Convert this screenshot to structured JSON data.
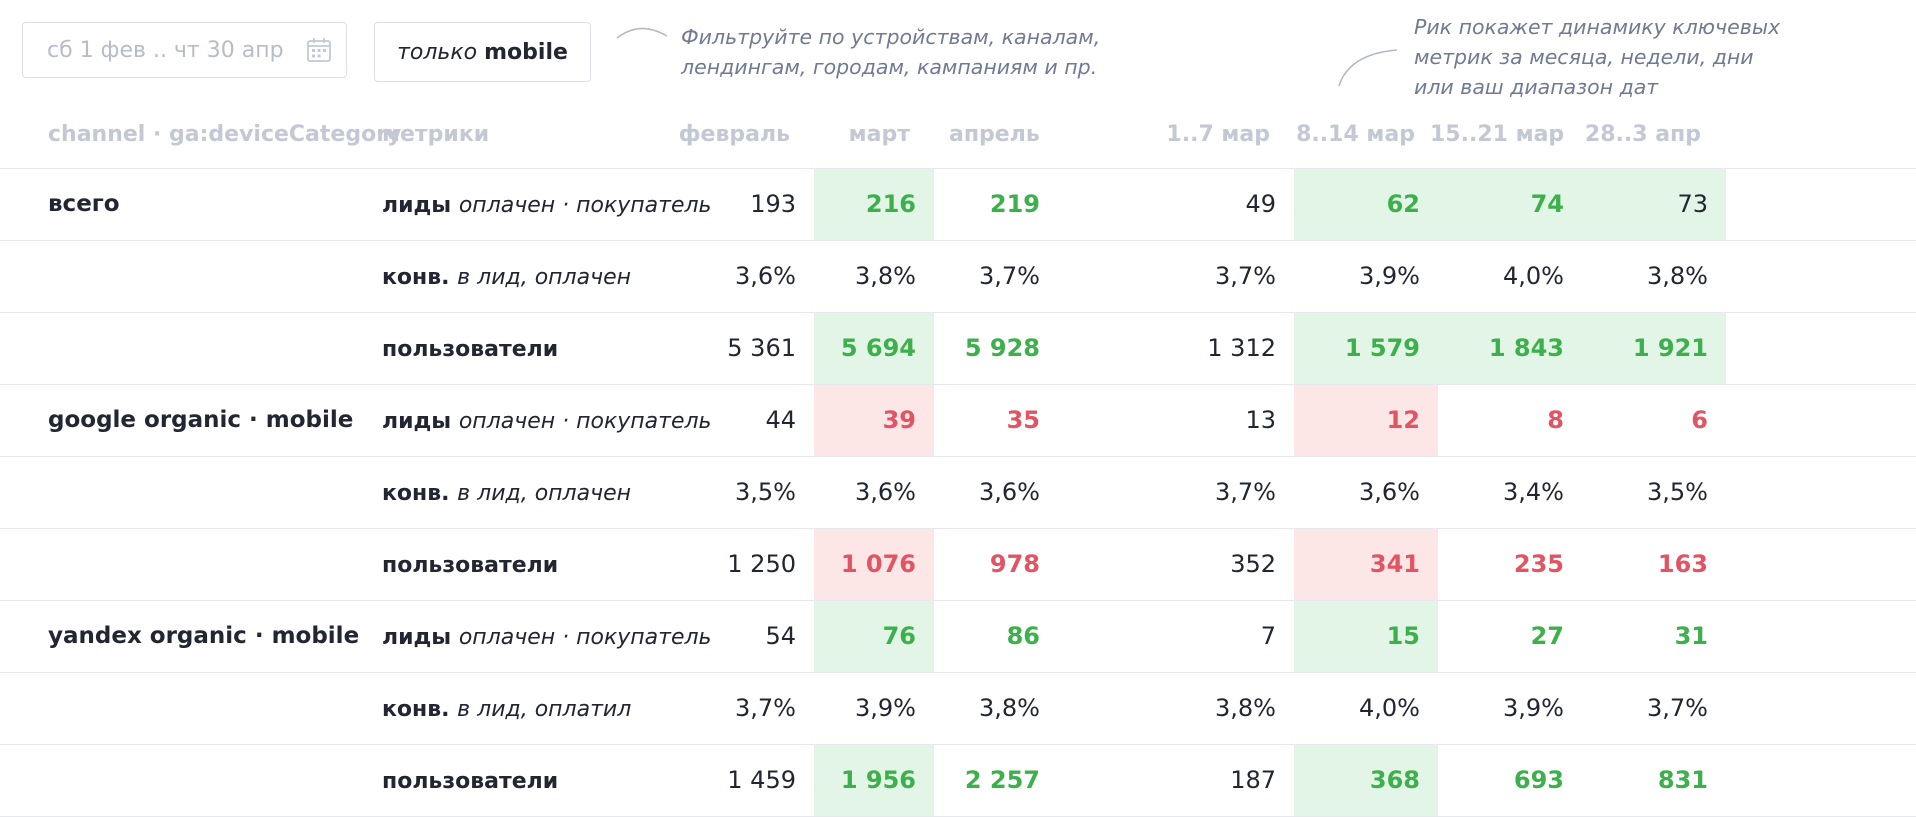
{
  "date_range": {
    "placeholder": "сб 1 фев .. чт 30 апр",
    "icon": "calendar-icon"
  },
  "filter_button": {
    "italic": "только",
    "bold": "mobile"
  },
  "notes": {
    "filter_hint": [
      "Фильтруйте по устройствам, каналам,",
      "лендингам, городам, кампаниям и пр."
    ],
    "dynamics_hint": [
      "Рик покажет динамику ключевых",
      "метрик за месяца, недели, дни",
      "или ваш диапазон дат"
    ]
  },
  "headers": {
    "segment": "channel · ga:deviceCategory",
    "metric": "метрики",
    "months": [
      "февраль",
      "март",
      "апрель"
    ],
    "weeks": [
      "1..7 мар",
      "8..14 мар",
      "15..21 мар",
      "28..3 апр"
    ]
  },
  "rows": [
    {
      "segment": "всего",
      "metric_bold": "лиды",
      "metric_italic": "оплачен · покупатель",
      "cells": [
        {
          "v": "193",
          "c": ""
        },
        {
          "v": "216",
          "c": "g",
          "bg": "g"
        },
        {
          "v": "219",
          "c": "g"
        },
        {
          "v": "49",
          "c": ""
        },
        {
          "v": "62",
          "c": "g",
          "bg": "g"
        },
        {
          "v": "74",
          "c": "g",
          "bg": "g"
        },
        {
          "v": "73",
          "c": "",
          "bg": "g"
        }
      ]
    },
    {
      "segment": "",
      "metric_bold": "конв.",
      "metric_italic": "в лид, оплачен",
      "cells": [
        {
          "v": "3,6%",
          "c": ""
        },
        {
          "v": "3,8%",
          "c": ""
        },
        {
          "v": "3,7%",
          "c": ""
        },
        {
          "v": "3,7%",
          "c": ""
        },
        {
          "v": "3,9%",
          "c": ""
        },
        {
          "v": "4,0%",
          "c": ""
        },
        {
          "v": "3,8%",
          "c": ""
        }
      ]
    },
    {
      "segment": "",
      "metric_bold": "пользователи",
      "metric_italic": "",
      "cells": [
        {
          "v": "5 361",
          "c": ""
        },
        {
          "v": "5 694",
          "c": "g",
          "bg": "g"
        },
        {
          "v": "5 928",
          "c": "g"
        },
        {
          "v": "1 312",
          "c": ""
        },
        {
          "v": "1 579",
          "c": "g",
          "bg": "g"
        },
        {
          "v": "1 843",
          "c": "g",
          "bg": "g"
        },
        {
          "v": "1 921",
          "c": "g",
          "bg": "g"
        }
      ]
    },
    {
      "segment": "google organic · mobile",
      "metric_bold": "лиды",
      "metric_italic": "оплачен · покупатель",
      "cells": [
        {
          "v": "44",
          "c": ""
        },
        {
          "v": "39",
          "c": "r",
          "bg": "r"
        },
        {
          "v": "35",
          "c": "r"
        },
        {
          "v": "13",
          "c": ""
        },
        {
          "v": "12",
          "c": "r",
          "bg": "r"
        },
        {
          "v": "8",
          "c": "r"
        },
        {
          "v": "6",
          "c": "r"
        }
      ]
    },
    {
      "segment": "",
      "metric_bold": "конв.",
      "metric_italic": "в лид, оплачен",
      "cells": [
        {
          "v": "3,5%",
          "c": ""
        },
        {
          "v": "3,6%",
          "c": ""
        },
        {
          "v": "3,6%",
          "c": ""
        },
        {
          "v": "3,7%",
          "c": ""
        },
        {
          "v": "3,6%",
          "c": ""
        },
        {
          "v": "3,4%",
          "c": ""
        },
        {
          "v": "3,5%",
          "c": ""
        }
      ]
    },
    {
      "segment": "",
      "metric_bold": "пользователи",
      "metric_italic": "",
      "cells": [
        {
          "v": "1 250",
          "c": ""
        },
        {
          "v": "1 076",
          "c": "r",
          "bg": "r"
        },
        {
          "v": "978",
          "c": "r"
        },
        {
          "v": "352",
          "c": ""
        },
        {
          "v": "341",
          "c": "r",
          "bg": "r"
        },
        {
          "v": "235",
          "c": "r"
        },
        {
          "v": "163",
          "c": "r"
        }
      ]
    },
    {
      "segment": "yandex organic · mobile",
      "metric_bold": "лиды",
      "metric_italic": "оплачен · покупатель",
      "cells": [
        {
          "v": "54",
          "c": ""
        },
        {
          "v": "76",
          "c": "g",
          "bg": "g"
        },
        {
          "v": "86",
          "c": "g"
        },
        {
          "v": "7",
          "c": ""
        },
        {
          "v": "15",
          "c": "g",
          "bg": "g"
        },
        {
          "v": "27",
          "c": "g"
        },
        {
          "v": "31",
          "c": "g"
        }
      ]
    },
    {
      "segment": "",
      "metric_bold": "конв.",
      "metric_italic": "в лид, оплатил",
      "cells": [
        {
          "v": "3,7%",
          "c": ""
        },
        {
          "v": "3,9%",
          "c": ""
        },
        {
          "v": "3,8%",
          "c": ""
        },
        {
          "v": "3,8%",
          "c": ""
        },
        {
          "v": "4,0%",
          "c": ""
        },
        {
          "v": "3,9%",
          "c": ""
        },
        {
          "v": "3,7%",
          "c": ""
        }
      ]
    },
    {
      "segment": "",
      "metric_bold": "пользователи",
      "metric_italic": "",
      "cells": [
        {
          "v": "1 459",
          "c": ""
        },
        {
          "v": "1 956",
          "c": "g",
          "bg": "g"
        },
        {
          "v": "2 257",
          "c": "g"
        },
        {
          "v": "187",
          "c": ""
        },
        {
          "v": "368",
          "c": "g",
          "bg": "g"
        },
        {
          "v": "693",
          "c": "g"
        },
        {
          "v": "831",
          "c": "g"
        }
      ]
    }
  ],
  "colors": {
    "positive": "#3cb04a",
    "negative": "#e25463",
    "positive_bg": "#e3f5e7",
    "negative_bg": "#fde6e6",
    "header": "#c3c8d4"
  }
}
